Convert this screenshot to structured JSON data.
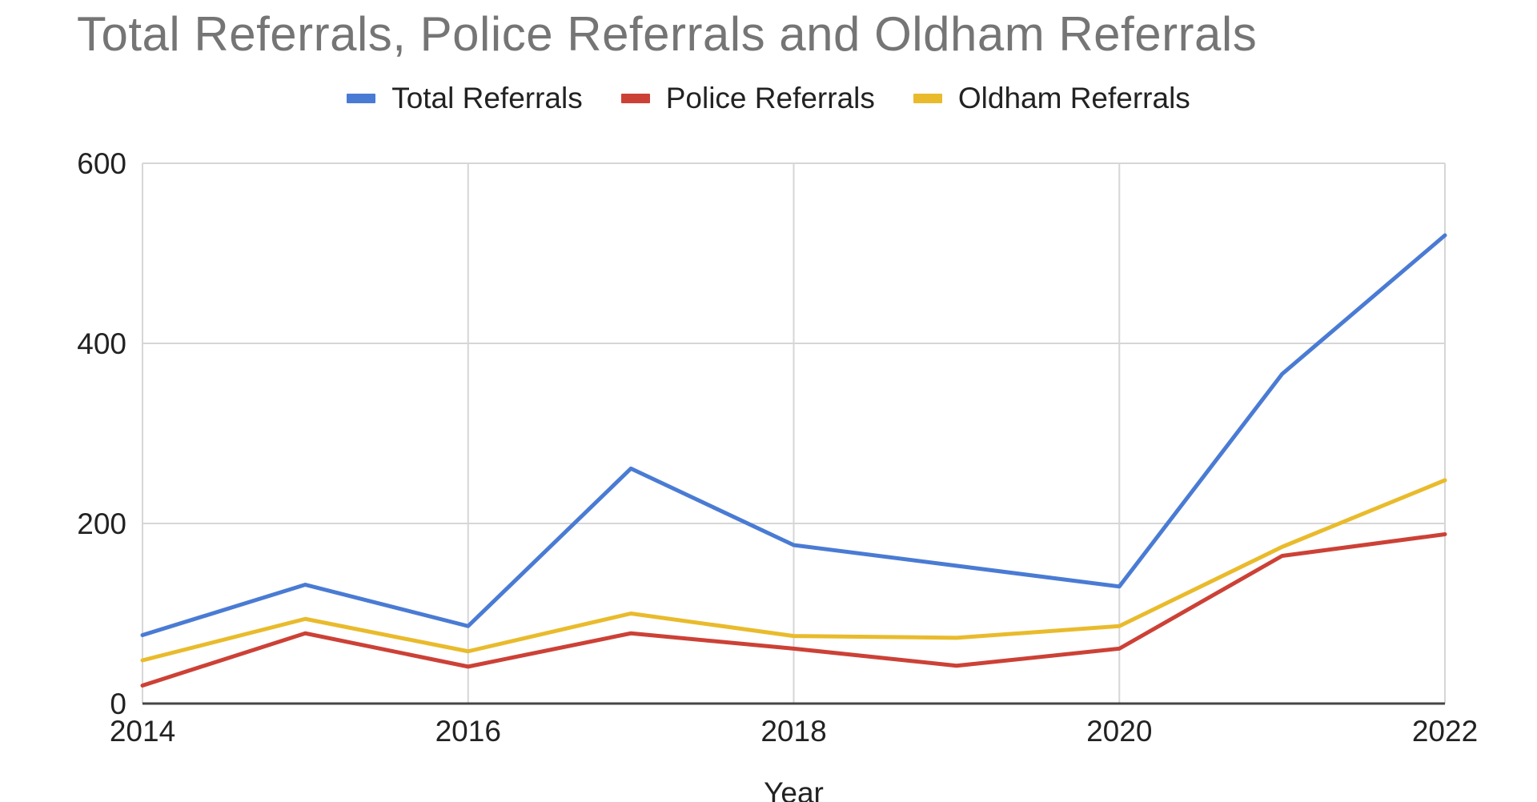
{
  "chart_data": {
    "type": "line",
    "title": "Total Referrals, Police Referrals and Oldham Referrals",
    "xlabel": "Year",
    "ylabel": "",
    "x": [
      2014,
      2015,
      2016,
      2017,
      2018,
      2019,
      2020,
      2021,
      2022
    ],
    "xticks": [
      "2014",
      "2016",
      "2018",
      "2020",
      "2022"
    ],
    "xlim": [
      2014,
      2022
    ],
    "ylim": [
      0,
      600
    ],
    "yticks": [
      "0",
      "200",
      "400",
      "600"
    ],
    "grid": true,
    "legend_position": "top-center",
    "series": [
      {
        "name": "Total Referrals",
        "color": "#4a7bd4",
        "values": [
          76,
          132,
          86,
          261,
          176,
          153,
          130,
          366,
          520
        ]
      },
      {
        "name": "Police Referrals",
        "color": "#cc4136",
        "values": [
          20,
          78,
          41,
          78,
          61,
          42,
          61,
          164,
          188
        ]
      },
      {
        "name": "Oldham Referrals",
        "color": "#e9bb2c",
        "values": [
          48,
          94,
          58,
          100,
          75,
          73,
          86,
          174,
          248
        ]
      }
    ]
  }
}
